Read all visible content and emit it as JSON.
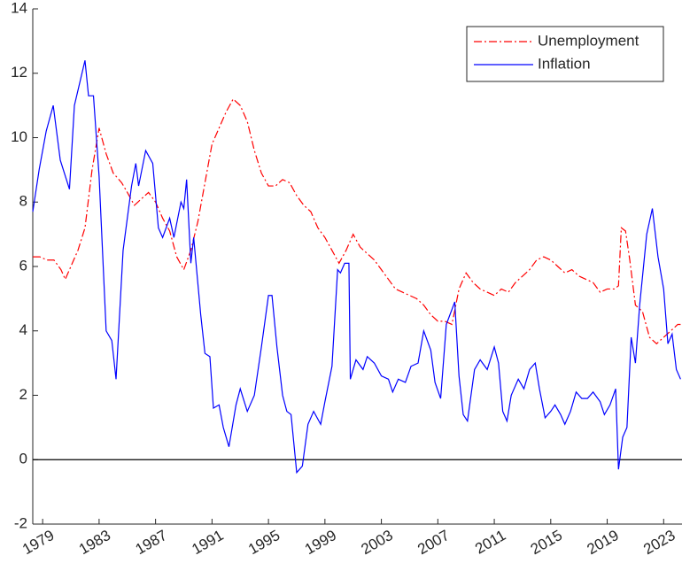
{
  "chart_data": {
    "type": "line",
    "xlim": [
      1978.3,
      2024.3
    ],
    "ylim": [
      -2,
      14
    ],
    "xticks": [
      1979,
      1983,
      1987,
      1991,
      1995,
      1999,
      2003,
      2007,
      2011,
      2015,
      2019,
      2023
    ],
    "yticks": [
      -2,
      0,
      2,
      4,
      6,
      8,
      10,
      12,
      14
    ],
    "hline": 0,
    "grid": false,
    "legend": "upper right",
    "series": [
      {
        "name": "Unemployment",
        "color": "#ff0000",
        "linestyle": "dashdot",
        "x": [
          1978.3,
          1978.8,
          1979.3,
          1979.8,
          1980.3,
          1980.6,
          1981,
          1981.5,
          1982,
          1982.5,
          1983,
          1983.5,
          1984,
          1984.6,
          1985,
          1985.5,
          1986,
          1986.5,
          1987,
          1987.5,
          1988,
          1988.5,
          1989,
          1989.5,
          1990,
          1990.5,
          1991,
          1991.5,
          1992,
          1992.5,
          1993,
          1993.5,
          1994,
          1994.5,
          1995,
          1995.5,
          1996,
          1996.5,
          1997,
          1997.5,
          1998,
          1998.5,
          1999,
          1999.5,
          2000,
          2000.5,
          2001,
          2001.5,
          2002,
          2002.5,
          2003,
          2003.5,
          2004,
          2004.5,
          2005,
          2005.5,
          2006,
          2006.5,
          2007,
          2007.5,
          2008,
          2008.5,
          2009,
          2009.5,
          2010,
          2010.5,
          2011,
          2011.5,
          2012,
          2012.5,
          2013,
          2013.5,
          2014,
          2014.5,
          2015,
          2015.5,
          2016,
          2016.5,
          2017,
          2017.5,
          2018,
          2018.5,
          2019,
          2019.5,
          2019.8,
          2020,
          2020.3,
          2020.6,
          2021,
          2021.5,
          2022,
          2022.5,
          2023,
          2023.5,
          2024,
          2024.2
        ],
        "values": [
          6.3,
          6.3,
          6.2,
          6.2,
          5.9,
          5.6,
          6.0,
          6.5,
          7.2,
          9.0,
          10.3,
          9.5,
          8.9,
          8.6,
          8.3,
          7.9,
          8.1,
          8.3,
          8.0,
          7.5,
          7.1,
          6.3,
          5.9,
          6.5,
          7.4,
          8.6,
          9.8,
          10.3,
          10.8,
          11.2,
          11.0,
          10.5,
          9.6,
          8.9,
          8.5,
          8.5,
          8.7,
          8.6,
          8.2,
          7.9,
          7.7,
          7.2,
          6.9,
          6.5,
          6.1,
          6.5,
          7.0,
          6.6,
          6.4,
          6.2,
          5.9,
          5.6,
          5.3,
          5.2,
          5.1,
          5.0,
          4.8,
          4.5,
          4.3,
          4.3,
          4.2,
          5.3,
          5.8,
          5.5,
          5.3,
          5.2,
          5.1,
          5.3,
          5.2,
          5.5,
          5.7,
          5.9,
          6.2,
          6.3,
          6.2,
          6.0,
          5.8,
          5.9,
          5.7,
          5.6,
          5.5,
          5.2,
          5.3,
          5.3,
          5.4,
          7.2,
          7.1,
          6.2,
          4.8,
          4.6,
          3.8,
          3.6,
          3.8,
          4.0,
          4.2,
          4.2
        ]
      },
      {
        "name": "Inflation",
        "color": "#0000ff",
        "linestyle": "solid",
        "x": [
          1978.3,
          1978.75,
          1979.25,
          1979.75,
          1980.25,
          1980.9,
          1981.25,
          1982.0,
          1982.25,
          1982.6,
          1983,
          1983.5,
          1983.9,
          1984.2,
          1984.7,
          1985.3,
          1985.6,
          1985.8,
          1986.3,
          1986.8,
          1987.2,
          1987.5,
          1988,
          1988.3,
          1988.8,
          1989,
          1989.2,
          1989.5,
          1989.7,
          1990.2,
          1990.5,
          1990.85,
          1991.1,
          1991.5,
          1991.8,
          1992.2,
          1992.7,
          1993,
          1993.5,
          1994,
          1994.5,
          1995,
          1995.25,
          1995.6,
          1996,
          1996.3,
          1996.6,
          1997,
          1997.4,
          1997.8,
          1998.2,
          1998.7,
          1999,
          1999.5,
          1999.9,
          2000.1,
          2000.4,
          2000.7,
          2000.8,
          2001.2,
          2001.7,
          2002,
          2002.5,
          2003,
          2003.5,
          2003.8,
          2004.2,
          2004.7,
          2005.1,
          2005.6,
          2006,
          2006.5,
          2006.8,
          2007.2,
          2007.6,
          2008.2,
          2008.5,
          2008.8,
          2009.1,
          2009.6,
          2010,
          2010.5,
          2011,
          2011.3,
          2011.6,
          2011.9,
          2012.2,
          2012.7,
          2013.1,
          2013.5,
          2013.9,
          2014.2,
          2014.6,
          2015,
          2015.3,
          2015.7,
          2016,
          2016.4,
          2016.8,
          2017.2,
          2017.6,
          2018,
          2018.5,
          2018.8,
          2019.2,
          2019.6,
          2019.8,
          2020.1,
          2020.4,
          2020.7,
          2021,
          2021.3,
          2021.8,
          2022.2,
          2022.6,
          2023,
          2023.3,
          2023.6,
          2023.9,
          2024.2
        ],
        "values": [
          7.7,
          9.0,
          10.2,
          11.0,
          9.3,
          8.4,
          11.0,
          12.4,
          11.3,
          11.3,
          8.8,
          4.0,
          3.7,
          2.5,
          6.5,
          8.5,
          9.2,
          8.5,
          9.6,
          9.2,
          7.2,
          6.9,
          7.5,
          6.9,
          8.0,
          7.8,
          8.7,
          6.1,
          6.9,
          4.5,
          3.3,
          3.2,
          1.6,
          1.7,
          1.0,
          0.4,
          1.7,
          2.2,
          1.5,
          2.0,
          3.5,
          5.1,
          5.1,
          3.5,
          2.0,
          1.5,
          1.4,
          -0.4,
          -0.2,
          1.1,
          1.5,
          1.1,
          1.8,
          2.9,
          5.9,
          5.8,
          6.1,
          6.1,
          2.5,
          3.1,
          2.8,
          3.2,
          3.0,
          2.6,
          2.5,
          2.1,
          2.5,
          2.4,
          2.9,
          3.0,
          4.0,
          3.4,
          2.4,
          1.9,
          4.2,
          4.9,
          2.6,
          1.4,
          1.2,
          2.8,
          3.1,
          2.8,
          3.5,
          3.0,
          1.5,
          1.2,
          2.0,
          2.5,
          2.2,
          2.8,
          3.0,
          2.2,
          1.3,
          1.5,
          1.7,
          1.4,
          1.1,
          1.5,
          2.1,
          1.9,
          1.9,
          2.1,
          1.8,
          1.4,
          1.7,
          2.2,
          -0.3,
          0.7,
          1.0,
          3.8,
          3.0,
          4.8,
          7.0,
          7.8,
          6.3,
          5.3,
          3.6,
          3.9,
          2.8,
          2.5
        ]
      }
    ]
  }
}
